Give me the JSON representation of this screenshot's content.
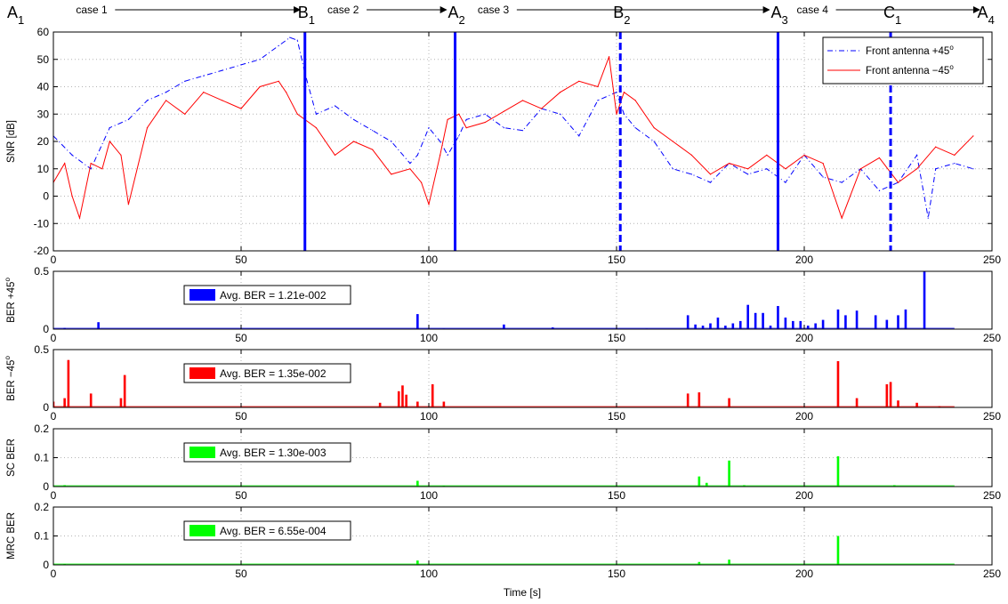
{
  "colors": {
    "plus45": "#0000ff",
    "minus45": "#ff0000",
    "sc": "#00ff00",
    "mrc": "#00ff00",
    "axis": "#000000",
    "grid": "#b4b4b4"
  },
  "xlabel": "Time [s]",
  "chart_data": [
    {
      "type": "line",
      "ylabel": "SNR [dB]",
      "xlim": [
        0,
        250
      ],
      "ylim": [
        -20,
        60
      ],
      "xticks": [
        0,
        50,
        100,
        150,
        200,
        250
      ],
      "yticks": [
        -20,
        -10,
        0,
        10,
        20,
        30,
        40,
        50,
        60
      ],
      "grid": true,
      "legend_position": "top-right",
      "legend": [
        "Front antenna +45°",
        "Front antenna −45°"
      ],
      "series": [
        {
          "name": "Front antenna +45°",
          "style": "dash-dot",
          "x": [
            0,
            5,
            10,
            15,
            20,
            25,
            30,
            35,
            40,
            45,
            50,
            55,
            60,
            63,
            65,
            67,
            70,
            75,
            80,
            85,
            90,
            95,
            97,
            100,
            103,
            105,
            108,
            110,
            115,
            120,
            125,
            130,
            135,
            140,
            145,
            150,
            152,
            155,
            160,
            165,
            170,
            175,
            180,
            185,
            190,
            195,
            200,
            205,
            210,
            215,
            220,
            225,
            230,
            233,
            235,
            240,
            245
          ],
          "y": [
            22,
            15,
            10,
            25,
            28,
            35,
            38,
            42,
            44,
            46,
            48,
            50,
            55,
            58,
            57,
            45,
            30,
            33,
            28,
            24,
            20,
            12,
            15,
            25,
            20,
            15,
            22,
            28,
            30,
            25,
            24,
            32,
            30,
            22,
            35,
            38,
            30,
            25,
            20,
            10,
            8,
            5,
            12,
            8,
            10,
            5,
            15,
            7,
            5,
            10,
            2,
            5,
            15,
            -8,
            10,
            12,
            10
          ]
        },
        {
          "name": "Front antenna −45°",
          "style": "solid",
          "x": [
            0,
            3,
            5,
            7,
            10,
            13,
            15,
            18,
            20,
            25,
            30,
            35,
            40,
            45,
            50,
            55,
            60,
            62,
            65,
            67,
            70,
            75,
            80,
            85,
            90,
            95,
            98,
            100,
            103,
            105,
            108,
            110,
            115,
            120,
            125,
            130,
            135,
            140,
            145,
            148,
            150,
            152,
            155,
            160,
            165,
            170,
            175,
            180,
            185,
            190,
            195,
            200,
            205,
            210,
            215,
            220,
            225,
            230,
            235,
            240,
            245
          ],
          "y": [
            5,
            12,
            0,
            -8,
            12,
            10,
            20,
            15,
            -3,
            25,
            35,
            30,
            38,
            35,
            32,
            40,
            42,
            38,
            30,
            28,
            25,
            15,
            20,
            17,
            8,
            10,
            5,
            -3,
            15,
            28,
            30,
            25,
            27,
            31,
            35,
            32,
            38,
            42,
            40,
            51,
            30,
            38,
            35,
            25,
            20,
            15,
            8,
            12,
            10,
            15,
            10,
            15,
            12,
            -8,
            10,
            14,
            5,
            10,
            18,
            15,
            22
          ]
        }
      ],
      "vertical_markers": [
        {
          "x": 67,
          "style": "solid"
        },
        {
          "x": 107,
          "style": "solid"
        },
        {
          "x": 151,
          "style": "dashed"
        },
        {
          "x": 193,
          "style": "solid"
        },
        {
          "x": 223,
          "style": "dashed"
        }
      ],
      "point_labels": [
        {
          "letter": "A",
          "sub": "1",
          "x": 0
        },
        {
          "letter": "B",
          "sub": "1",
          "x": 67
        },
        {
          "letter": "A",
          "sub": "2",
          "x": 107
        },
        {
          "letter": "B",
          "sub": "2",
          "x": 151
        },
        {
          "letter": "A",
          "sub": "3",
          "x": 193
        },
        {
          "letter": "C",
          "sub": "1",
          "x": 223
        },
        {
          "letter": "A",
          "sub": "4",
          "x": 248
        }
      ],
      "case_arrows": [
        {
          "label": "case 1",
          "x_start": 6,
          "x_end": 64
        },
        {
          "label": "case 2",
          "x_start": 73,
          "x_end": 103
        },
        {
          "label": "case 3",
          "x_start": 113,
          "x_end": 189
        },
        {
          "label": "case 4",
          "x_start": 198,
          "x_end": 245
        }
      ]
    },
    {
      "type": "bar",
      "ylabel": "BER +45°",
      "xlim": [
        0,
        250
      ],
      "ylim": [
        0,
        0.5
      ],
      "xticks": [
        0,
        50,
        100,
        150,
        200,
        250
      ],
      "yticks": [
        0,
        0.5
      ],
      "yticklabels": [
        "0",
        "0.5"
      ],
      "grid": true,
      "legend_position": "top-left",
      "legend": "Avg. BER = 1.21e-002",
      "x": [
        3,
        12,
        97,
        104,
        120,
        133,
        158,
        169,
        171,
        173,
        175,
        177,
        179,
        181,
        183,
        185,
        187,
        189,
        191,
        193,
        195,
        197,
        199,
        201,
        203,
        205,
        209,
        211,
        214,
        219,
        222,
        225,
        227,
        232
      ],
      "values": [
        0.01,
        0.06,
        0.13,
        0.005,
        0.04,
        0.015,
        0.005,
        0.12,
        0.04,
        0.03,
        0.05,
        0.1,
        0.03,
        0.05,
        0.07,
        0.21,
        0.14,
        0.14,
        0.03,
        0.2,
        0.1,
        0.07,
        0.07,
        0.03,
        0.05,
        0.08,
        0.17,
        0.12,
        0.16,
        0.12,
        0.08,
        0.12,
        0.17,
        0.5
      ]
    },
    {
      "type": "bar",
      "ylabel": "BER −45°",
      "xlim": [
        0,
        250
      ],
      "ylim": [
        0,
        0.5
      ],
      "xticks": [
        0,
        50,
        100,
        150,
        200,
        250
      ],
      "yticks": [
        0,
        0.5
      ],
      "yticklabels": [
        "0",
        "0.5"
      ],
      "grid": true,
      "legend_position": "top-left",
      "legend": "Avg. BER = 1.35e-002",
      "x": [
        0,
        3,
        4,
        10,
        18,
        19,
        87,
        92,
        93,
        94,
        97,
        101,
        104,
        169,
        172,
        180,
        209,
        214,
        222,
        223,
        225,
        230,
        236
      ],
      "values": [
        0.05,
        0.08,
        0.41,
        0.12,
        0.08,
        0.28,
        0.04,
        0.14,
        0.19,
        0.11,
        0.05,
        0.2,
        0.05,
        0.12,
        0.13,
        0.08,
        0.4,
        0.08,
        0.2,
        0.22,
        0.06,
        0.04,
        0.01
      ]
    },
    {
      "type": "bar",
      "ylabel": "SC BER",
      "xlim": [
        0,
        250
      ],
      "ylim": [
        0,
        0.2
      ],
      "xticks": [
        0,
        50,
        100,
        150,
        200,
        250
      ],
      "yticks": [
        0,
        0.1,
        0.2
      ],
      "yticklabels": [
        "0",
        "0.1",
        "0.2"
      ],
      "grid": true,
      "legend_position": "top-left",
      "legend": "Avg. BER = 1.30e-003",
      "x": [
        3,
        97,
        104,
        172,
        174,
        180,
        184,
        209,
        224
      ],
      "values": [
        0.005,
        0.02,
        0.003,
        0.035,
        0.013,
        0.09,
        0.005,
        0.105,
        0.005
      ]
    },
    {
      "type": "bar",
      "ylabel": "MRC BER",
      "xlim": [
        0,
        250
      ],
      "ylim": [
        0,
        0.2
      ],
      "xticks": [
        0,
        50,
        100,
        150,
        200,
        250
      ],
      "yticks": [
        0,
        0.1,
        0.2
      ],
      "yticklabels": [
        "0",
        "0.1",
        "0.2"
      ],
      "grid": true,
      "legend_position": "top-left",
      "legend": "Avg. BER = 6.55e-004",
      "x": [
        3,
        97,
        172,
        180,
        209
      ],
      "values": [
        0.003,
        0.015,
        0.01,
        0.018,
        0.1
      ]
    }
  ]
}
